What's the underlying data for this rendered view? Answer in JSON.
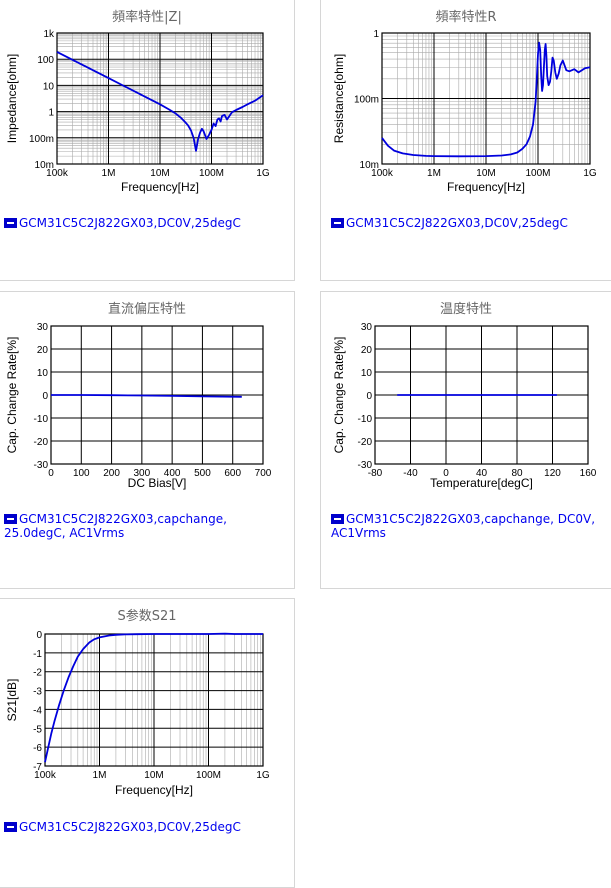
{
  "colors": {
    "series": "#0000dd",
    "grid_major": "#000000",
    "grid_minor": "#aaaaaa",
    "legend_text": "#0000ee"
  },
  "chart_data": [
    {
      "id": "impedance",
      "type": "line",
      "title": "頻率特性|Z|",
      "xlabel": "Frequency[Hz]",
      "ylabel": "Impedance[ohm]",
      "xscale": "log",
      "yscale": "log",
      "xlim": [
        100000,
        1000000000
      ],
      "ylim": [
        0.01,
        1000
      ],
      "xticks": [
        {
          "v": 100000,
          "label": "100k"
        },
        {
          "v": 1000000,
          "label": "1M"
        },
        {
          "v": 10000000,
          "label": "10M"
        },
        {
          "v": 100000000,
          "label": "100M"
        },
        {
          "v": 1000000000,
          "label": "1G"
        }
      ],
      "yticks": [
        {
          "v": 0.01,
          "label": "10m"
        },
        {
          "v": 0.1,
          "label": "100m"
        },
        {
          "v": 1,
          "label": "1"
        },
        {
          "v": 10,
          "label": "10"
        },
        {
          "v": 100,
          "label": "100"
        },
        {
          "v": 1000,
          "label": "1k"
        }
      ],
      "grid": true,
      "series": [
        {
          "legend": "GCM31C5C2J822GX03,DC0V,25degC",
          "x": [
            100000,
            200000,
            500000,
            1000000,
            2000000,
            5000000,
            10000000,
            15000000,
            20000000,
            25000000,
            30000000,
            35000000,
            40000000,
            45000000,
            50000000,
            55000000,
            60000000,
            65000000,
            70000000,
            80000000,
            90000000,
            100000000,
            110000000,
            120000000,
            130000000,
            140000000,
            150000000,
            160000000,
            180000000,
            200000000,
            250000000,
            300000000,
            400000000,
            500000000,
            700000000,
            1000000000
          ],
          "y": [
            190,
            95,
            38,
            19,
            9.5,
            3.8,
            1.9,
            1.2,
            0.85,
            0.6,
            0.42,
            0.3,
            0.19,
            0.1,
            0.032,
            0.09,
            0.16,
            0.22,
            0.18,
            0.09,
            0.13,
            0.2,
            0.35,
            0.28,
            0.5,
            0.55,
            0.42,
            0.68,
            0.75,
            0.5,
            0.95,
            1.15,
            1.5,
            1.9,
            2.6,
            4.2
          ]
        }
      ]
    },
    {
      "id": "resistance",
      "type": "line",
      "title": "頻率特性R",
      "xlabel": "Frequency[Hz]",
      "ylabel": "Resistance[ohm]",
      "xscale": "log",
      "yscale": "log",
      "xlim": [
        100000,
        1000000000
      ],
      "ylim": [
        0.01,
        1
      ],
      "xticks": [
        {
          "v": 100000,
          "label": "100k"
        },
        {
          "v": 1000000,
          "label": "1M"
        },
        {
          "v": 10000000,
          "label": "10M"
        },
        {
          "v": 100000000,
          "label": "100M"
        },
        {
          "v": 1000000000,
          "label": "1G"
        }
      ],
      "yticks": [
        {
          "v": 0.01,
          "label": "10m"
        },
        {
          "v": 0.1,
          "label": "100m"
        },
        {
          "v": 1,
          "label": "1"
        }
      ],
      "grid": true,
      "series": [
        {
          "legend": "GCM31C5C2J822GX03,DC0V,25degC",
          "x": [
            100000,
            130000,
            170000,
            250000,
            400000,
            700000,
            1000000,
            3000000,
            10000000,
            20000000,
            30000000,
            40000000,
            50000000,
            60000000,
            70000000,
            80000000,
            90000000,
            95000000,
            100000000,
            105000000,
            110000000,
            115000000,
            120000000,
            125000000,
            130000000,
            135000000,
            140000000,
            145000000,
            150000000,
            160000000,
            170000000,
            180000000,
            190000000,
            200000000,
            215000000,
            230000000,
            250000000,
            270000000,
            300000000,
            350000000,
            400000000,
            500000000,
            600000000,
            800000000,
            1000000000
          ],
          "y": [
            0.025,
            0.019,
            0.016,
            0.0145,
            0.0137,
            0.0133,
            0.0132,
            0.0131,
            0.0132,
            0.0135,
            0.014,
            0.015,
            0.017,
            0.02,
            0.026,
            0.04,
            0.09,
            0.2,
            0.48,
            0.71,
            0.55,
            0.22,
            0.13,
            0.16,
            0.3,
            0.55,
            0.68,
            0.45,
            0.22,
            0.16,
            0.18,
            0.26,
            0.42,
            0.38,
            0.25,
            0.2,
            0.24,
            0.32,
            0.38,
            0.27,
            0.26,
            0.28,
            0.25,
            0.29,
            0.3
          ]
        }
      ]
    },
    {
      "id": "dc_bias",
      "type": "line",
      "title": "直流偏压特性",
      "xlabel": "DC Bias[V]",
      "ylabel": "Cap. Change Rate[%]",
      "xlim": [
        0,
        700
      ],
      "ylim": [
        -30,
        30
      ],
      "xticks": [
        {
          "v": 0,
          "label": "0"
        },
        {
          "v": 100,
          "label": "100"
        },
        {
          "v": 200,
          "label": "200"
        },
        {
          "v": 300,
          "label": "300"
        },
        {
          "v": 400,
          "label": "400"
        },
        {
          "v": 500,
          "label": "500"
        },
        {
          "v": 600,
          "label": "600"
        },
        {
          "v": 700,
          "label": "700"
        }
      ],
      "yticks": [
        {
          "v": -30,
          "label": "-30"
        },
        {
          "v": -20,
          "label": "-20"
        },
        {
          "v": -10,
          "label": "-10"
        },
        {
          "v": 0,
          "label": "0"
        },
        {
          "v": 10,
          "label": "10"
        },
        {
          "v": 20,
          "label": "20"
        },
        {
          "v": 30,
          "label": "30"
        }
      ],
      "grid": true,
      "series": [
        {
          "legend": "GCM31C5C2J822GX03,capchange, 25.0degC, AC1Vrms",
          "x": [
            0,
            100,
            200,
            300,
            400,
            500,
            630
          ],
          "y": [
            0,
            0,
            -0.1,
            -0.2,
            -0.4,
            -0.6,
            -0.8
          ]
        }
      ]
    },
    {
      "id": "temperature",
      "type": "line",
      "title": "温度特性",
      "xlabel": "Temperature[degC]",
      "ylabel": "Cap. Change Rate[%]",
      "xlim": [
        -80,
        160
      ],
      "ylim": [
        -30,
        30
      ],
      "xticks": [
        {
          "v": -80,
          "label": "-80"
        },
        {
          "v": -40,
          "label": "-40"
        },
        {
          "v": 0,
          "label": "0"
        },
        {
          "v": 40,
          "label": "40"
        },
        {
          "v": 80,
          "label": "80"
        },
        {
          "v": 120,
          "label": "120"
        },
        {
          "v": 160,
          "label": "160"
        }
      ],
      "yticks": [
        {
          "v": -30,
          "label": "-30"
        },
        {
          "v": -20,
          "label": "-20"
        },
        {
          "v": -10,
          "label": "-10"
        },
        {
          "v": 0,
          "label": "0"
        },
        {
          "v": 10,
          "label": "10"
        },
        {
          "v": 20,
          "label": "20"
        },
        {
          "v": 30,
          "label": "30"
        }
      ],
      "grid": true,
      "series": [
        {
          "legend": "GCM31C5C2J822GX03,capchange, DC0V, AC1Vrms",
          "x": [
            -55,
            0,
            25,
            85,
            125
          ],
          "y": [
            0,
            0,
            0,
            0,
            0
          ]
        }
      ]
    },
    {
      "id": "s21",
      "type": "line",
      "title": "S参数S21",
      "xlabel": "Frequency[Hz]",
      "ylabel": "S21[dB]",
      "xscale": "log",
      "xlim": [
        100000,
        1000000000
      ],
      "ylim": [
        -7,
        0
      ],
      "xticks": [
        {
          "v": 100000,
          "label": "100k"
        },
        {
          "v": 1000000,
          "label": "1M"
        },
        {
          "v": 10000000,
          "label": "10M"
        },
        {
          "v": 100000000,
          "label": "100M"
        },
        {
          "v": 1000000000,
          "label": "1G"
        }
      ],
      "yticks": [
        {
          "v": -7,
          "label": "-7"
        },
        {
          "v": -6,
          "label": "-6"
        },
        {
          "v": -5,
          "label": "-5"
        },
        {
          "v": -4,
          "label": "-4"
        },
        {
          "v": -3,
          "label": "-3"
        },
        {
          "v": -2,
          "label": "-2"
        },
        {
          "v": -1,
          "label": "-1"
        },
        {
          "v": 0,
          "label": "0"
        }
      ],
      "grid": true,
      "series": [
        {
          "legend": "GCM31C5C2J822GX03,DC0V,25degC",
          "x": [
            100000,
            115000,
            130000,
            150000,
            180000,
            220000,
            270000,
            330000,
            400000,
            500000,
            650000,
            800000,
            1000000,
            1500000,
            2000000,
            3000000,
            5000000,
            10000000,
            100000000,
            200000000,
            300000000,
            1000000000
          ],
          "y": [
            -6.8,
            -6.0,
            -5.3,
            -4.6,
            -3.8,
            -3.0,
            -2.3,
            -1.7,
            -1.2,
            -0.8,
            -0.45,
            -0.28,
            -0.18,
            -0.08,
            -0.04,
            -0.02,
            -0.01,
            0,
            0,
            0.02,
            0,
            0
          ]
        }
      ]
    }
  ]
}
